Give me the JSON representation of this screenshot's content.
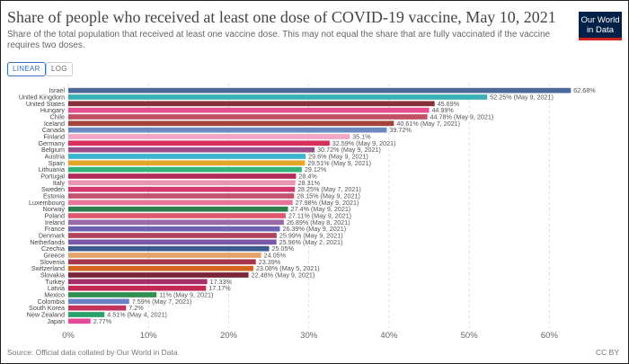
{
  "header": {
    "title": "Share of people who received at least one dose of COVID-19 vaccine, May 10, 2021",
    "subtitle": "Share of the total population that received at least one vaccine dose. This may not equal the share that are fully vaccinated if the vaccine requires two doses.",
    "logo_line1": "Our World",
    "logo_line2": "in Data"
  },
  "controls": {
    "linear_label": "LINEAR",
    "log_label": "LOG"
  },
  "footer": {
    "source": "Source: Official data collated by Our World in Data",
    "license": "CC BY"
  },
  "chart_data": {
    "type": "bar",
    "orientation": "horizontal",
    "title": "Share of people who received at least one dose of COVID-19 vaccine, May 10, 2021",
    "xlim": [
      0,
      65
    ],
    "xticks": [
      0,
      10,
      20,
      30,
      40,
      50,
      60
    ],
    "xtick_labels": [
      "0%",
      "10%",
      "20%",
      "30%",
      "40%",
      "50%",
      "60%"
    ],
    "grid": true,
    "bars": [
      {
        "country": "Israel",
        "value": 62.68,
        "label": "62.68%",
        "color": "#4c6a9c"
      },
      {
        "country": "United Kingdom",
        "value": 52.25,
        "label": "52.25% (May 9, 2021)",
        "color": "#3aafb5"
      },
      {
        "country": "United States",
        "value": 45.69,
        "label": "45.69%",
        "color": "#883039"
      },
      {
        "country": "Hungary",
        "value": 44.99,
        "label": "44.99%",
        "color": "#e54e8f"
      },
      {
        "country": "Chile",
        "value": 44.78,
        "label": "44.78% (May 9, 2021)",
        "color": "#c15065"
      },
      {
        "country": "Iceland",
        "value": 40.61,
        "label": "40.61% (May 7, 2021)",
        "color": "#a2443a"
      },
      {
        "country": "Canada",
        "value": 39.72,
        "label": "39.72%",
        "color": "#6c8ac0"
      },
      {
        "country": "Finland",
        "value": 35.1,
        "label": "35.1%",
        "color": "#f2a6c4"
      },
      {
        "country": "Germany",
        "value": 32.59,
        "label": "32.59% (May 9, 2021)",
        "color": "#d6305a"
      },
      {
        "country": "Belgium",
        "value": 30.72,
        "label": "30.72% (May 9, 2021)",
        "color": "#9b4f8a"
      },
      {
        "country": "Austria",
        "value": 29.6,
        "label": "29.6% (May 9, 2021)",
        "color": "#3cb6d0"
      },
      {
        "country": "Spain",
        "value": 29.51,
        "label": "29.51% (May 9, 2021)",
        "color": "#e3a52a"
      },
      {
        "country": "Lithuania",
        "value": 29.12,
        "label": "29.12%",
        "color": "#34b47a"
      },
      {
        "country": "Portugal",
        "value": 28.4,
        "label": "28.4%",
        "color": "#b22e5a"
      },
      {
        "country": "Italy",
        "value": 28.31,
        "label": "28.31%",
        "color": "#e895b0"
      },
      {
        "country": "Sweden",
        "value": 28.25,
        "label": "28.25% (May 7, 2021)",
        "color": "#d23a6e"
      },
      {
        "country": "Estonia",
        "value": 28.15,
        "label": "28.15% (May 9, 2021)",
        "color": "#c4526e"
      },
      {
        "country": "Luxembourg",
        "value": 27.98,
        "label": "27.98% (May 9, 2021)",
        "color": "#e8749a"
      },
      {
        "country": "Norway",
        "value": 27.4,
        "label": "27.4% (May 9, 2021)",
        "color": "#2e7d4a"
      },
      {
        "country": "Poland",
        "value": 27.11,
        "label": "27.11% (May 9, 2021)",
        "color": "#e05870"
      },
      {
        "country": "Ireland",
        "value": 26.89,
        "label": "26.89% (May 8, 2021)",
        "color": "#9a6aa8"
      },
      {
        "country": "France",
        "value": 26.39,
        "label": "26.39% (May 9, 2021)",
        "color": "#6f62b5"
      },
      {
        "country": "Denmark",
        "value": 25.99,
        "label": "25.99% (May 9, 2021)",
        "color": "#b0445e"
      },
      {
        "country": "Netherlands",
        "value": 25.96,
        "label": "25.96% (May 2, 2021)",
        "color": "#7a5aa6"
      },
      {
        "country": "Czechia",
        "value": 25.05,
        "label": "25.05%",
        "color": "#3c5a8c"
      },
      {
        "country": "Greece",
        "value": 24.05,
        "label": "24.05%",
        "color": "#e2a36a"
      },
      {
        "country": "Slovenia",
        "value": 23.39,
        "label": "23.39%",
        "color": "#a6364a"
      },
      {
        "country": "Switzerland",
        "value": 23.08,
        "label": "23.08% (May 5, 2021)",
        "color": "#d4651e"
      },
      {
        "country": "Slovakia",
        "value": 22.48,
        "label": "22.48% (May 9, 2021)",
        "color": "#7a2638"
      },
      {
        "country": "Turkey",
        "value": 17.33,
        "label": "17.33%",
        "color": "#a3306a"
      },
      {
        "country": "Latvia",
        "value": 17.17,
        "label": "17.17%",
        "color": "#c22a52"
      },
      {
        "country": "Mexico",
        "value": 11,
        "label": "11% (May 9, 2021)",
        "color": "#2f8f4e"
      },
      {
        "country": "Colombia",
        "value": 7.59,
        "label": "7.59% (May 7, 2021)",
        "color": "#6a7fc4"
      },
      {
        "country": "South Korea",
        "value": 7.2,
        "label": "7.2%",
        "color": "#c2345a"
      },
      {
        "country": "New Zealand",
        "value": 4.51,
        "label": "4.51% (May 4, 2021)",
        "color": "#2aa06a"
      },
      {
        "country": "Japan",
        "value": 2.77,
        "label": "2.77%",
        "color": "#e44a9a"
      }
    ]
  }
}
